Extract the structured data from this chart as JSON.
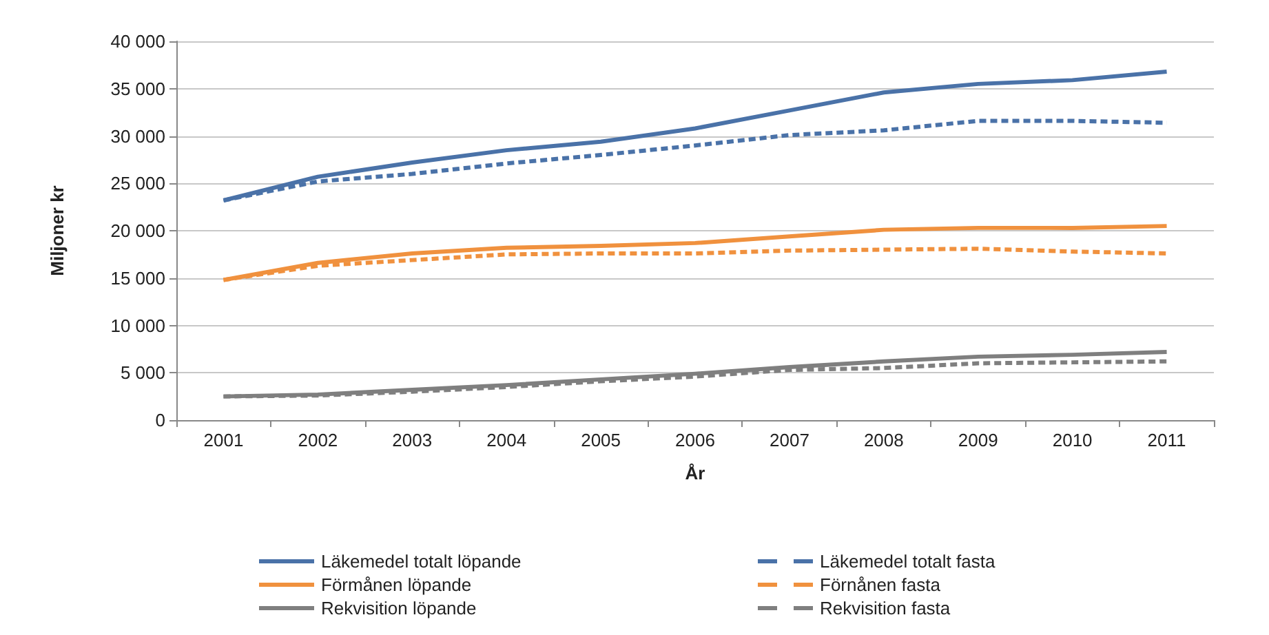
{
  "chart_data": {
    "type": "line",
    "xlabel": "År",
    "ylabel": "Miljoner kr",
    "categories": [
      "2001",
      "2002",
      "2003",
      "2004",
      "2005",
      "2006",
      "2007",
      "2008",
      "2009",
      "2010",
      "2011"
    ],
    "ylim": [
      0,
      40000
    ],
    "yticks": [
      {
        "value": 0,
        "label": "0"
      },
      {
        "value": 5000,
        "label": "5 000"
      },
      {
        "value": 10000,
        "label": "10 000"
      },
      {
        "value": 15000,
        "label": "15 000"
      },
      {
        "value": 20000,
        "label": "20 000"
      },
      {
        "value": 25000,
        "label": "25 000"
      },
      {
        "value": 30000,
        "label": "30 000"
      },
      {
        "value": 35000,
        "label": "35 000"
      },
      {
        "value": 40000,
        "label": "40 000"
      }
    ],
    "grid": "y",
    "legend": "bottom",
    "marker": "none",
    "series": [
      {
        "name": "Läkemedel totalt löpande",
        "color": "#4a72a8",
        "line_style": "solid",
        "values": [
          23200,
          25700,
          27200,
          28500,
          29400,
          30800,
          32700,
          34600,
          35500,
          35900,
          36800
        ]
      },
      {
        "name": "Förmånen löpande",
        "color": "#f0913e",
        "line_style": "solid",
        "values": [
          14800,
          16600,
          17600,
          18200,
          18400,
          18700,
          19400,
          20100,
          20300,
          20300,
          20500
        ]
      },
      {
        "name": "Rekvisition löpande",
        "color": "#7f7f7f",
        "line_style": "solid",
        "values": [
          2500,
          2700,
          3200,
          3700,
          4300,
          4900,
          5600,
          6200,
          6700,
          6900,
          7200
        ]
      },
      {
        "name": "Läkemedel totalt fasta",
        "color": "#4a72a8",
        "line_style": "dashed",
        "values": [
          23200,
          25200,
          26000,
          27100,
          28000,
          29000,
          30100,
          30600,
          31600,
          31600,
          31400
        ]
      },
      {
        "name": "Förnånen fasta",
        "color": "#f0913e",
        "line_style": "dashed",
        "values": [
          14800,
          16300,
          16900,
          17500,
          17600,
          17600,
          17900,
          18000,
          18100,
          17800,
          17600
        ]
      },
      {
        "name": "Rekvisition fasta",
        "color": "#7f7f7f",
        "line_style": "dashed",
        "values": [
          2500,
          2600,
          3000,
          3500,
          4100,
          4600,
          5300,
          5500,
          6000,
          6100,
          6200
        ]
      }
    ]
  }
}
